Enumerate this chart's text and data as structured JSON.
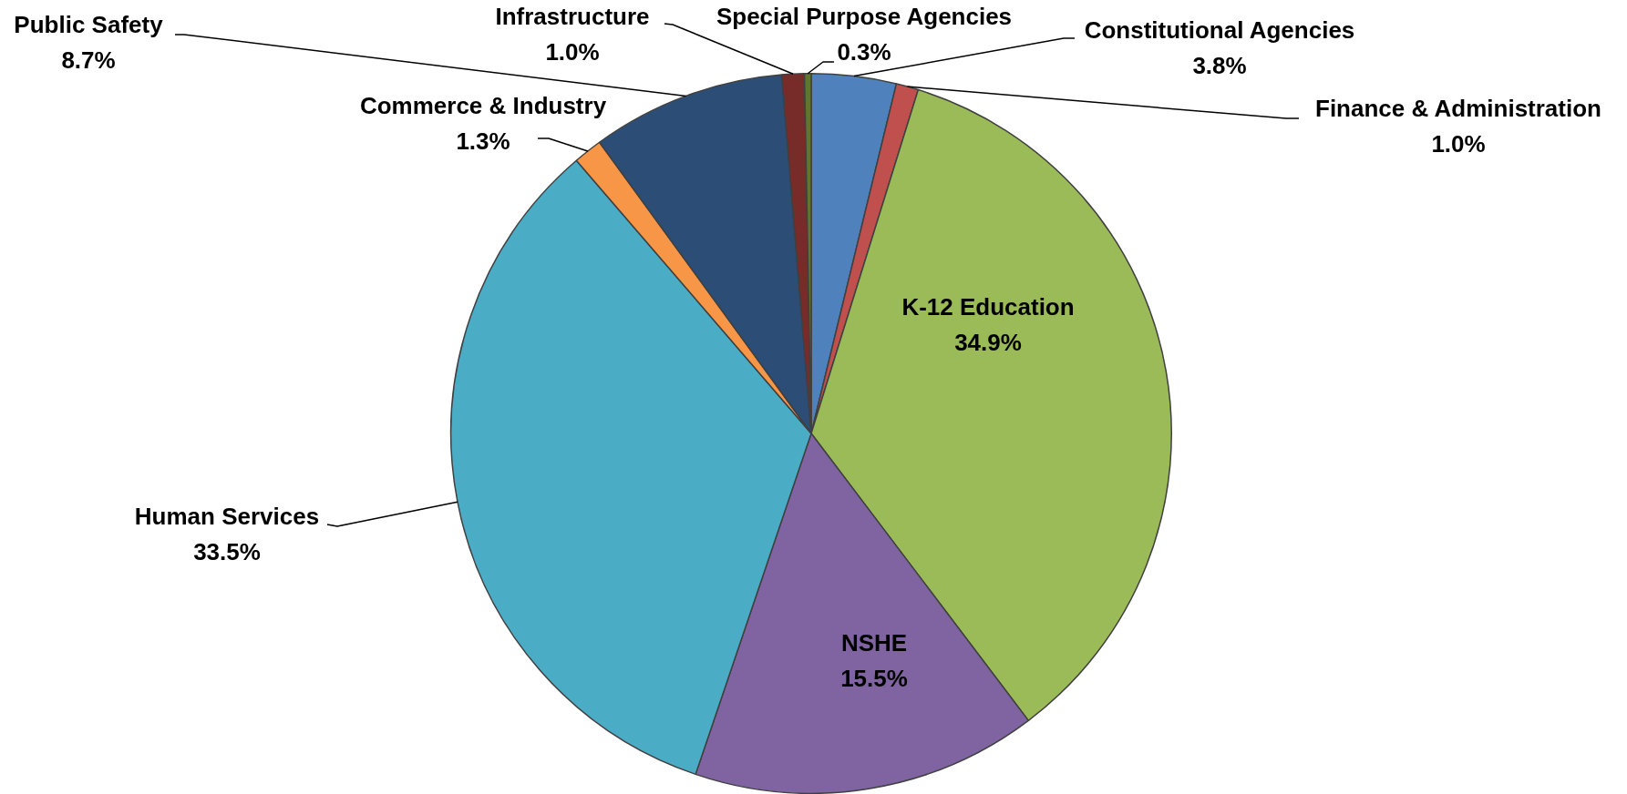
{
  "chart_data": {
    "type": "pie",
    "categories": [
      "Constitutional Agencies",
      "Finance & Administration",
      "K-12 Education",
      "NSHE",
      "Human Services",
      "Commerce & Industry",
      "Public Safety",
      "Infrastructure",
      "Special Purpose Agencies"
    ],
    "values": [
      3.8,
      1.0,
      34.9,
      15.5,
      33.5,
      1.3,
      8.7,
      1.0,
      0.3
    ],
    "colors": [
      "#4f81bd",
      "#c0504d",
      "#9bbb59",
      "#8064a2",
      "#4bacc6",
      "#f79646",
      "#2c4d75",
      "#772c2a",
      "#5f7530"
    ],
    "value_labels": [
      "3.8%",
      "1.0%",
      "34.9%",
      "15.5%",
      "33.5%",
      "1.3%",
      "8.7%",
      "1.0%",
      "0.3%"
    ]
  }
}
